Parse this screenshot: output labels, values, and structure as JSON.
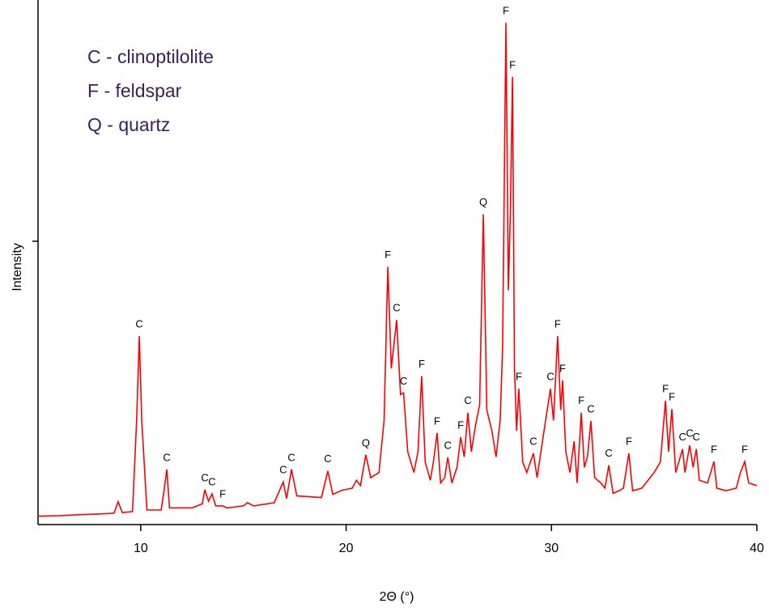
{
  "chart_data": {
    "type": "line",
    "key": [
      "C - clinoptilolite",
      "F - feldspar",
      "Q - quartz"
    ],
    "xlabel": "2Θ (°)",
    "ylabel": "Intensity",
    "xlim": [
      5,
      40
    ],
    "xticks": [
      10,
      20,
      30,
      40
    ],
    "ylim": [
      0,
      100
    ],
    "x": [
      5.0,
      6.0,
      7.0,
      7.8,
      8.7,
      8.9,
      9.1,
      9.6,
      9.8,
      9.93,
      10.05,
      10.3,
      11.0,
      11.15,
      11.27,
      11.4,
      12.5,
      13.0,
      13.12,
      13.3,
      13.47,
      13.65,
      13.99,
      14.2,
      15.0,
      15.2,
      15.5,
      16.5,
      16.94,
      17.1,
      17.34,
      17.6,
      18.8,
      19.11,
      19.35,
      19.8,
      20.3,
      20.5,
      20.7,
      20.96,
      21.2,
      21.6,
      21.85,
      22.03,
      22.2,
      22.46,
      22.65,
      22.8,
      23.0,
      23.3,
      23.5,
      23.68,
      23.85,
      24.1,
      24.25,
      24.43,
      24.6,
      24.8,
      24.95,
      25.15,
      25.4,
      25.58,
      25.75,
      25.93,
      26.1,
      26.3,
      26.5,
      26.68,
      26.85,
      27.1,
      27.3,
      27.5,
      27.62,
      27.78,
      27.9,
      28.0,
      28.1,
      28.2,
      28.3,
      28.41,
      28.6,
      28.8,
      29.12,
      29.3,
      29.6,
      29.95,
      30.1,
      30.3,
      30.45,
      30.54,
      30.7,
      30.9,
      31.1,
      31.25,
      31.45,
      31.6,
      31.75,
      31.92,
      32.1,
      32.4,
      32.6,
      32.79,
      33.0,
      33.3,
      33.5,
      33.77,
      33.95,
      34.4,
      34.8,
      35.0,
      35.3,
      35.55,
      35.7,
      35.86,
      36.05,
      36.38,
      36.5,
      36.73,
      36.9,
      37.05,
      37.2,
      37.6,
      37.91,
      38.05,
      38.5,
      39.0,
      39.2,
      39.41,
      39.6,
      40.0
    ],
    "series": [
      {
        "color": "#ff0000",
        "values": [
          1.6,
          1.7,
          1.9,
          2.0,
          2.2,
          4.4,
          2.3,
          2.5,
          20,
          36.2,
          20,
          2.8,
          2.8,
          7,
          10.6,
          3.2,
          3.2,
          4,
          6.7,
          4.5,
          5.9,
          3.6,
          3.6,
          3.2,
          3.6,
          4.2,
          3.6,
          4.2,
          8.2,
          5,
          10.6,
          5.5,
          5.2,
          10.3,
          5.8,
          6.6,
          7,
          8.5,
          7.5,
          13.4,
          9,
          10,
          20,
          49.5,
          30,
          39.3,
          25,
          25.3,
          14,
          10,
          14,
          28.5,
          12,
          8.5,
          12,
          17.6,
          8,
          9,
          12.9,
          8,
          11,
          16.8,
          13,
          21.5,
          14,
          19,
          23,
          59.6,
          22,
          18,
          13,
          20,
          34,
          96.4,
          45,
          60,
          86.0,
          30,
          18,
          26.1,
          12,
          10,
          13.7,
          9,
          17,
          26.1,
          20,
          36.2,
          22,
          27.7,
          14,
          10,
          16,
          8,
          21.5,
          11,
          13,
          19.9,
          9,
          8,
          7,
          11.4,
          6,
          6.5,
          7,
          13.7,
          6.5,
          7,
          9,
          10,
          12,
          23.8,
          14,
          22.2,
          10,
          14.5,
          10,
          15.2,
          11,
          14.5,
          8.5,
          8,
          12.1,
          7,
          6.5,
          7,
          10,
          12.1,
          8,
          7.5
        ]
      }
    ],
    "annotations": [
      {
        "text": "C",
        "x": 9.93,
        "y": 36.2
      },
      {
        "text": "C",
        "x": 11.27,
        "y": 10.6
      },
      {
        "text": "C",
        "x": 13.12,
        "y": 6.7
      },
      {
        "text": "C",
        "x": 13.47,
        "y": 5.9
      },
      {
        "text": "F",
        "x": 13.99,
        "y": 3.6
      },
      {
        "text": "C",
        "x": 16.94,
        "y": 8.2
      },
      {
        "text": "C",
        "x": 17.34,
        "y": 10.6
      },
      {
        "text": "C",
        "x": 19.11,
        "y": 10.3
      },
      {
        "text": "Q",
        "x": 20.96,
        "y": 13.4
      },
      {
        "text": "F",
        "x": 22.03,
        "y": 49.5
      },
      {
        "text": "C",
        "x": 22.46,
        "y": 39.3
      },
      {
        "text": "C",
        "x": 22.8,
        "y": 25.3
      },
      {
        "text": "F",
        "x": 23.68,
        "y": 28.5
      },
      {
        "text": "F",
        "x": 24.43,
        "y": 17.6
      },
      {
        "text": "C",
        "x": 24.95,
        "y": 12.9
      },
      {
        "text": "F",
        "x": 25.58,
        "y": 16.8
      },
      {
        "text": "C",
        "x": 25.93,
        "y": 21.5
      },
      {
        "text": "Q",
        "x": 26.68,
        "y": 59.6
      },
      {
        "text": "F",
        "x": 27.78,
        "y": 96.4
      },
      {
        "text": "F",
        "x": 28.1,
        "y": 86.0
      },
      {
        "text": "F",
        "x": 28.41,
        "y": 26.1
      },
      {
        "text": "C",
        "x": 29.12,
        "y": 13.7
      },
      {
        "text": "C",
        "x": 29.95,
        "y": 26.1
      },
      {
        "text": "F",
        "x": 30.3,
        "y": 36.2
      },
      {
        "text": "F",
        "x": 30.54,
        "y": 27.7
      },
      {
        "text": "F",
        "x": 31.45,
        "y": 21.5
      },
      {
        "text": "C",
        "x": 31.92,
        "y": 19.9
      },
      {
        "text": "C",
        "x": 32.79,
        "y": 11.4
      },
      {
        "text": "F",
        "x": 33.77,
        "y": 13.7
      },
      {
        "text": "F",
        "x": 35.55,
        "y": 23.8
      },
      {
        "text": "F",
        "x": 35.86,
        "y": 22.2
      },
      {
        "text": "C",
        "x": 36.38,
        "y": 14.5
      },
      {
        "text": "C",
        "x": 36.73,
        "y": 15.2
      },
      {
        "text": "C",
        "x": 37.05,
        "y": 14.5
      },
      {
        "text": "F",
        "x": 37.91,
        "y": 12.1
      },
      {
        "text": "F",
        "x": 39.41,
        "y": 12.1
      }
    ]
  }
}
